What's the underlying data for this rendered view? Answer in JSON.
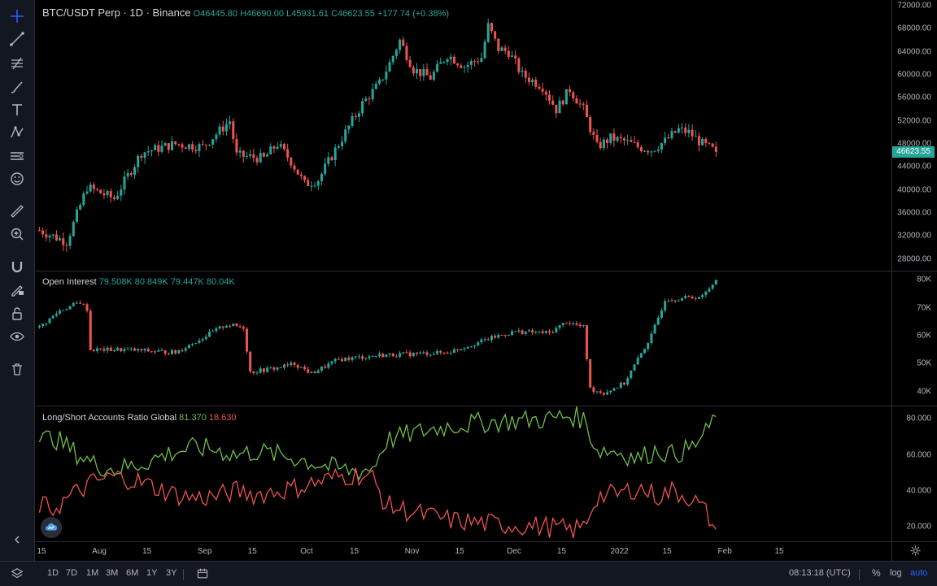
{
  "main_legend": {
    "symbol": "BTC/USDT Perp · 1D · Binance",
    "open": "O46445.80",
    "high": "H46690.00",
    "low": "L45931.61",
    "close": "C46623.55",
    "change": "+177.74 (+0.38%)"
  },
  "oi_legend": {
    "title": "Open Interest",
    "values": [
      "79.508K",
      "80.849K",
      "79.447K",
      "80.04K"
    ]
  },
  "ls_legend": {
    "title": "Long/Short Accounts Ratio Global",
    "long": "81.370",
    "short": "18.630"
  },
  "price_axis": [
    "72000.00",
    "68000.00",
    "64000.00",
    "60000.00",
    "56000.00",
    "52000.00",
    "48000.00",
    "44000.00",
    "40000.00",
    "36000.00",
    "32000.00",
    "28000.00"
  ],
  "last_price": "46623.55",
  "oi_axis": [
    "80K",
    "70K",
    "60K",
    "50K",
    "40K"
  ],
  "ls_axis": [
    "80.000",
    "60.000",
    "40.000",
    "20.000"
  ],
  "time_axis": [
    "15",
    "Aug",
    "15",
    "Sep",
    "15",
    "Oct",
    "15",
    "Nov",
    "15",
    "Dec",
    "15",
    "2022",
    "15",
    "Feb",
    "15"
  ],
  "bottom_bar": {
    "ranges": [
      "1D",
      "7D",
      "1M",
      "3M",
      "6M",
      "1Y",
      "3Y"
    ],
    "clock": "08:13:18 (UTC)",
    "percent": "%",
    "log": "log",
    "auto": "auto"
  },
  "colors": {
    "up": "#26a69a",
    "down": "#ef5350",
    "long": "#6fbf4a",
    "short": "#ef5350",
    "accent": "#2962ff"
  },
  "toolbar_icons": [
    "crosshair-icon",
    "trend-line-icon",
    "fib-icon",
    "brush-icon",
    "text-icon",
    "pattern-icon",
    "prediction-icon",
    "emoji-icon",
    "ruler-icon",
    "zoom-in-icon",
    "magnet-icon",
    "lock-drawing-icon",
    "unlock-icon",
    "eye-icon",
    "trash-icon"
  ],
  "chart_data": [
    {
      "type": "candlestick",
      "title": "BTC/USDT Perp · 1D · Binance",
      "ylim": [
        26000,
        73000
      ],
      "anchors": [
        [
          0,
          33000
        ],
        [
          8,
          31000
        ],
        [
          14,
          40500
        ],
        [
          22,
          38500
        ],
        [
          30,
          46500
        ],
        [
          40,
          48000
        ],
        [
          48,
          47500
        ],
        [
          56,
          52000
        ],
        [
          58,
          46000
        ],
        [
          66,
          45500
        ],
        [
          70,
          48000
        ],
        [
          74,
          45000
        ],
        [
          78,
          41000
        ],
        [
          82,
          41800
        ],
        [
          88,
          48000
        ],
        [
          95,
          55000
        ],
        [
          100,
          58500
        ],
        [
          103,
          62000
        ],
        [
          106,
          66000
        ],
        [
          110,
          61000
        ],
        [
          115,
          59500
        ],
        [
          120,
          63500
        ],
        [
          125,
          61500
        ],
        [
          130,
          63000
        ],
        [
          132,
          68500
        ],
        [
          135,
          64500
        ],
        [
          138,
          64000
        ],
        [
          142,
          60000
        ],
        [
          148,
          58000
        ],
        [
          152,
          54000
        ],
        [
          156,
          57500
        ],
        [
          160,
          54000
        ],
        [
          164,
          47500
        ],
        [
          168,
          49000
        ],
        [
          172,
          48500
        ],
        [
          176,
          47500
        ],
        [
          180,
          47000
        ],
        [
          184,
          48500
        ],
        [
          188,
          50500
        ],
        [
          191,
          50000
        ],
        [
          195,
          48000
        ],
        [
          199,
          46623
        ]
      ]
    },
    {
      "type": "candlestick",
      "title": "Open Interest",
      "ylim": [
        35000,
        83000
      ],
      "anchors": [
        [
          0,
          63000
        ],
        [
          6,
          69000
        ],
        [
          12,
          72000
        ],
        [
          14,
          69500
        ],
        [
          15,
          55000
        ],
        [
          25,
          55000
        ],
        [
          40,
          54000
        ],
        [
          55,
          64000
        ],
        [
          60,
          63000
        ],
        [
          62,
          47000
        ],
        [
          70,
          48500
        ],
        [
          75,
          50000
        ],
        [
          80,
          46500
        ],
        [
          88,
          51500
        ],
        [
          100,
          53000
        ],
        [
          120,
          54000
        ],
        [
          135,
          60000
        ],
        [
          140,
          61500
        ],
        [
          150,
          61000
        ],
        [
          155,
          65000
        ],
        [
          160,
          63000
        ],
        [
          162,
          41000
        ],
        [
          166,
          39500
        ],
        [
          172,
          43000
        ],
        [
          180,
          60000
        ],
        [
          184,
          73000
        ],
        [
          195,
          74000
        ],
        [
          199,
          80040
        ]
      ]
    },
    {
      "type": "line",
      "title": "Long/Short Accounts Ratio Global",
      "ylim": [
        12,
        87
      ],
      "series": [
        {
          "name": "Long",
          "anchors": [
            [
              0,
              68
            ],
            [
              4,
              70
            ],
            [
              10,
              62
            ],
            [
              16,
              55
            ],
            [
              22,
              52
            ],
            [
              28,
              54
            ],
            [
              34,
              58
            ],
            [
              40,
              62
            ],
            [
              46,
              64
            ],
            [
              52,
              63
            ],
            [
              58,
              60
            ],
            [
              64,
              62
            ],
            [
              70,
              60
            ],
            [
              76,
              58
            ],
            [
              82,
              55
            ],
            [
              88,
              52
            ],
            [
              94,
              51
            ],
            [
              98,
              53
            ],
            [
              102,
              68
            ],
            [
              110,
              72
            ],
            [
              120,
              76
            ],
            [
              130,
              78
            ],
            [
              140,
              79
            ],
            [
              150,
              80
            ],
            [
              156,
              82
            ],
            [
              160,
              80
            ],
            [
              164,
              63
            ],
            [
              170,
              62
            ],
            [
              176,
              58
            ],
            [
              182,
              63
            ],
            [
              186,
              60
            ],
            [
              192,
              64
            ],
            [
              196,
              72
            ],
            [
              199,
              81.37
            ]
          ]
        },
        {
          "name": "Short",
          "anchors": [
            [
              0,
              32
            ],
            [
              4,
              30
            ],
            [
              10,
              38
            ],
            [
              16,
              45
            ],
            [
              22,
              48
            ],
            [
              28,
              46
            ],
            [
              34,
              42
            ],
            [
              40,
              38
            ],
            [
              46,
              36
            ],
            [
              52,
              37
            ],
            [
              58,
              40
            ],
            [
              64,
              38
            ],
            [
              70,
              40
            ],
            [
              76,
              42
            ],
            [
              82,
              45
            ],
            [
              88,
              48
            ],
            [
              94,
              49
            ],
            [
              98,
              47
            ],
            [
              102,
              32
            ],
            [
              110,
              28
            ],
            [
              120,
              24
            ],
            [
              130,
              22
            ],
            [
              140,
              21
            ],
            [
              150,
              20
            ],
            [
              156,
              18
            ],
            [
              160,
              20
            ],
            [
              164,
              37
            ],
            [
              170,
              38
            ],
            [
              176,
              42
            ],
            [
              182,
              37
            ],
            [
              186,
              40
            ],
            [
              192,
              36
            ],
            [
              196,
              28
            ],
            [
              199,
              18.63
            ]
          ]
        }
      ]
    }
  ]
}
